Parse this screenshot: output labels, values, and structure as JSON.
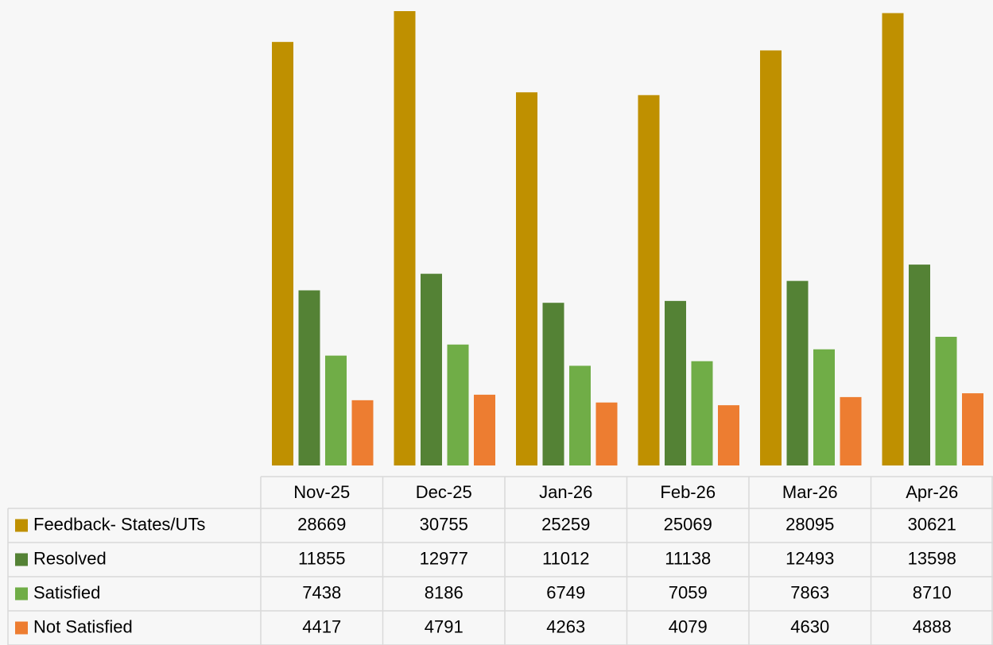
{
  "chart_data": {
    "type": "bar",
    "categories": [
      "Nov-25",
      "Dec-25",
      "Jan-26",
      "Feb-26",
      "Mar-26",
      "Apr-26"
    ],
    "series": [
      {
        "name": "Feedback- States/UTs",
        "color": "#bf9000",
        "values": [
          28669,
          30755,
          25259,
          25069,
          28095,
          30621
        ]
      },
      {
        "name": "Resolved",
        "color": "#548235",
        "values": [
          11855,
          12977,
          11012,
          11138,
          12493,
          13598
        ]
      },
      {
        "name": "Satisfied",
        "color": "#70ad47",
        "values": [
          7438,
          8186,
          6749,
          7059,
          7863,
          8710
        ]
      },
      {
        "name": "Not Satisfied",
        "color": "#ed7d31",
        "values": [
          4417,
          4791,
          4263,
          4079,
          4630,
          4888
        ]
      }
    ]
  }
}
